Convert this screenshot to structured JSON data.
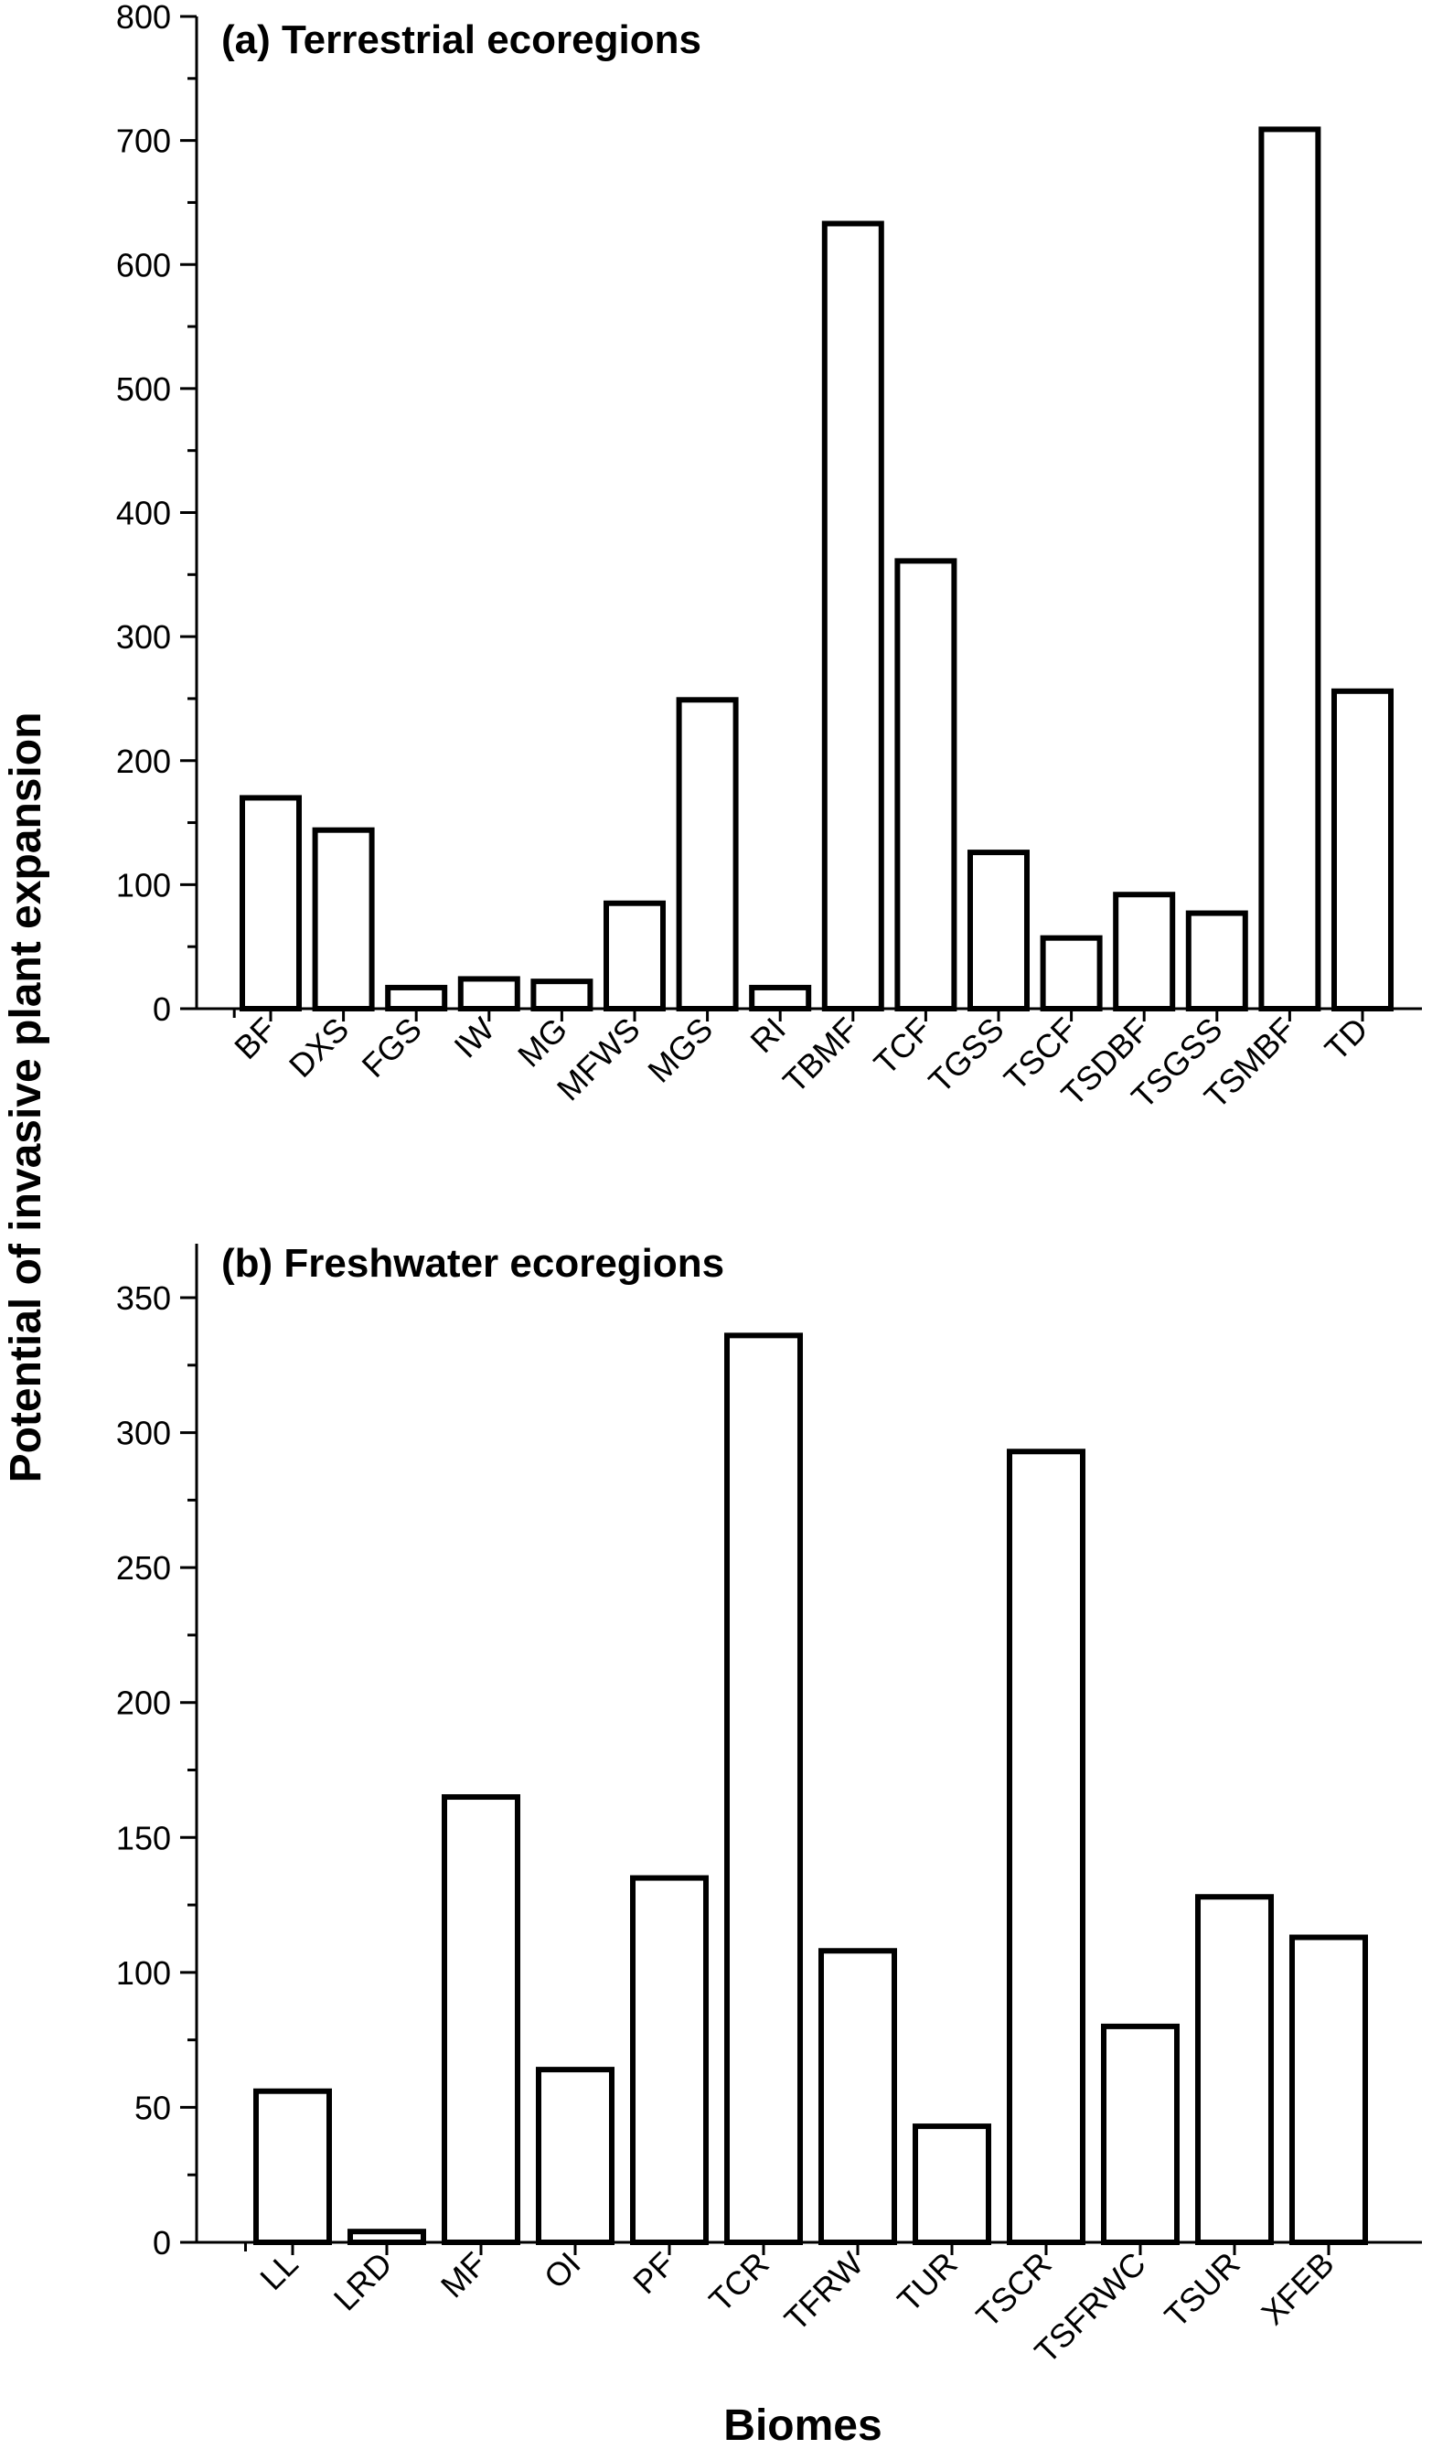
{
  "ylabel": "Potential of invasive plant expansion",
  "xlabel": "Biomes",
  "chart_data": [
    {
      "type": "bar",
      "title": "(a) Terrestrial ecoregions",
      "categories": [
        "BF",
        "DXS",
        "FGS",
        "IW",
        "MG",
        "MFWS",
        "MGS",
        "RI",
        "TBMF",
        "TCF",
        "TGSS",
        "TSCF",
        "TSDBF",
        "TSGSS",
        "TSMBF",
        "TD"
      ],
      "values": [
        170,
        144,
        17,
        24,
        22,
        85,
        249,
        17,
        633,
        361,
        126,
        57,
        92,
        77,
        709,
        256
      ],
      "ylim": [
        0,
        800
      ],
      "yticks": [
        0,
        100,
        200,
        300,
        400,
        500,
        600,
        700,
        800
      ],
      "grid": false
    },
    {
      "type": "bar",
      "title": "(b) Freshwater ecoregions",
      "categories": [
        "LL",
        "LRD",
        "MF",
        "OI",
        "PF",
        "TCR",
        "TFRW",
        "TUR",
        "TSCR",
        "TSFRWC",
        "TSUR",
        "XFEB"
      ],
      "values": [
        56,
        4,
        165,
        64,
        135,
        336,
        108,
        43,
        293,
        80,
        128,
        113
      ],
      "ylim": [
        0,
        370
      ],
      "yticks": [
        0,
        50,
        100,
        150,
        200,
        250,
        300,
        350
      ],
      "grid": false
    }
  ]
}
